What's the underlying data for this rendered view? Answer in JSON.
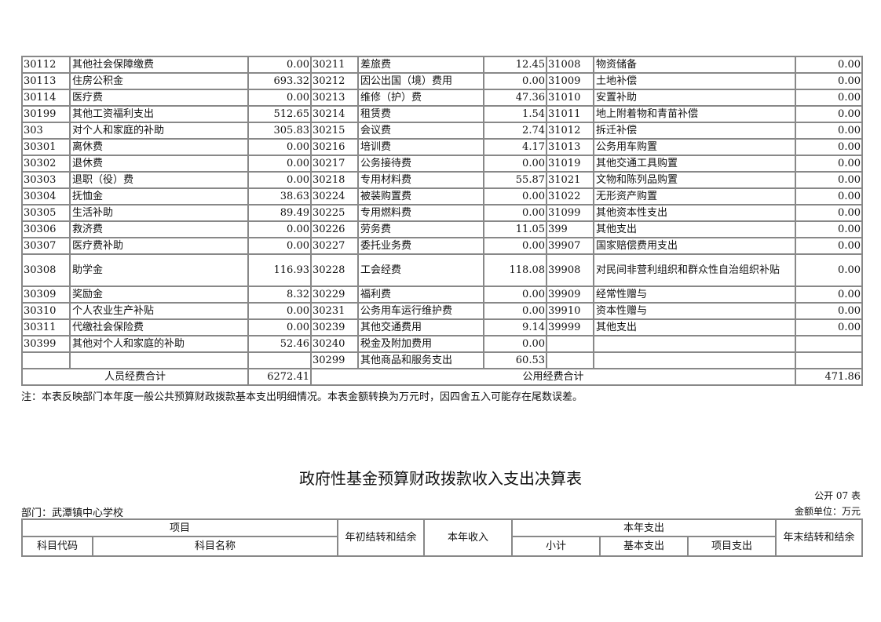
{
  "detail_table": {
    "rows": [
      [
        [
          "30112",
          "其他社会保障缴费",
          "0.00"
        ],
        [
          "30211",
          "差旅费",
          "12.45"
        ],
        [
          "31008",
          "物资储备",
          "0.00"
        ]
      ],
      [
        [
          "30113",
          "住房公积金",
          "693.32"
        ],
        [
          "30212",
          "因公出国（境）费用",
          "0.00"
        ],
        [
          "31009",
          "土地补偿",
          "0.00"
        ]
      ],
      [
        [
          "30114",
          "医疗费",
          "0.00"
        ],
        [
          "30213",
          "维修（护）费",
          "47.36"
        ],
        [
          "31010",
          "安置补助",
          "0.00"
        ]
      ],
      [
        [
          "30199",
          "其他工资福利支出",
          "512.65"
        ],
        [
          "30214",
          "租赁费",
          "1.54"
        ],
        [
          "31011",
          "地上附着物和青苗补偿",
          "0.00"
        ]
      ],
      [
        [
          "303",
          "对个人和家庭的补助",
          "305.83"
        ],
        [
          "30215",
          "会议费",
          "2.74"
        ],
        [
          "31012",
          "拆迁补偿",
          "0.00"
        ]
      ],
      [
        [
          "30301",
          "离休费",
          "0.00"
        ],
        [
          "30216",
          "培训费",
          "4.17"
        ],
        [
          "31013",
          "公务用车购置",
          "0.00"
        ]
      ],
      [
        [
          "30302",
          "退休费",
          "0.00"
        ],
        [
          "30217",
          "公务接待费",
          "0.00"
        ],
        [
          "31019",
          "其他交通工具购置",
          "0.00"
        ]
      ],
      [
        [
          "30303",
          "退职（役）费",
          "0.00"
        ],
        [
          "30218",
          "专用材料费",
          "55.87"
        ],
        [
          "31021",
          "文物和陈列品购置",
          "0.00"
        ]
      ],
      [
        [
          "30304",
          "抚恤金",
          "38.63"
        ],
        [
          "30224",
          "被装购置费",
          "0.00"
        ],
        [
          "31022",
          "无形资产购置",
          "0.00"
        ]
      ],
      [
        [
          "30305",
          "生活补助",
          "89.49"
        ],
        [
          "30225",
          "专用燃料费",
          "0.00"
        ],
        [
          "31099",
          "其他资本性支出",
          "0.00"
        ]
      ],
      [
        [
          "30306",
          "救济费",
          "0.00"
        ],
        [
          "30226",
          "劳务费",
          "11.05"
        ],
        [
          "399",
          "其他支出",
          "0.00"
        ]
      ],
      [
        [
          "30307",
          "医疗费补助",
          "0.00"
        ],
        [
          "30227",
          "委托业务费",
          "0.00"
        ],
        [
          "39907",
          "国家赔偿费用支出",
          "0.00"
        ]
      ],
      [
        [
          "30308",
          "助学金",
          "116.93"
        ],
        [
          "30228",
          "工会经费",
          "118.08"
        ],
        [
          "39908",
          "对民间非营利组织和群众性自治组织补贴",
          "0.00"
        ]
      ],
      [
        [
          "30309",
          "奖励金",
          "8.32"
        ],
        [
          "30229",
          "福利费",
          "0.00"
        ],
        [
          "39909",
          "经常性赠与",
          "0.00"
        ]
      ],
      [
        [
          "30310",
          "个人农业生产补贴",
          "0.00"
        ],
        [
          "30231",
          "公务用车运行维护费",
          "0.00"
        ],
        [
          "39910",
          "资本性赠与",
          "0.00"
        ]
      ],
      [
        [
          "30311",
          "代缴社会保险费",
          "0.00"
        ],
        [
          "30239",
          "其他交通费用",
          "9.14"
        ],
        [
          "39999",
          "其他支出",
          "0.00"
        ]
      ],
      [
        [
          "30399",
          "其他对个人和家庭的补助",
          "52.46"
        ],
        [
          "30240",
          "税金及附加费用",
          "0.00"
        ],
        [
          "",
          "",
          ""
        ]
      ],
      [
        [
          "",
          "",
          ""
        ],
        [
          "30299",
          "其他商品和服务支出",
          "60.53"
        ],
        [
          "",
          "",
          ""
        ]
      ]
    ],
    "personnel_total_label": "人员经费合计",
    "personnel_total_value": "6272.41",
    "public_total_label": "公用经费合计",
    "public_total_value": "471.86"
  },
  "note": "注：本表反映部门本年度一般公共预算财政拨款基本支出明细情况。本表金额转换为万元时，因四舍五入可能存在尾数误差。",
  "fund_section": {
    "title": "政府性基金预算财政拨款收入支出决算表",
    "form_no": "公开 07 表",
    "department": "部门：武潭镇中心学校",
    "unit": "金额单位：万元",
    "headers": {
      "item": "项目",
      "code": "科目代码",
      "name": "科目名称",
      "opening_balance": "年初结转和结余",
      "income": "本年收入",
      "expenditure": "本年支出",
      "subtotal": "小计",
      "basic": "基本支出",
      "project": "项目支出",
      "closing_balance": "年末结转和结余"
    }
  }
}
